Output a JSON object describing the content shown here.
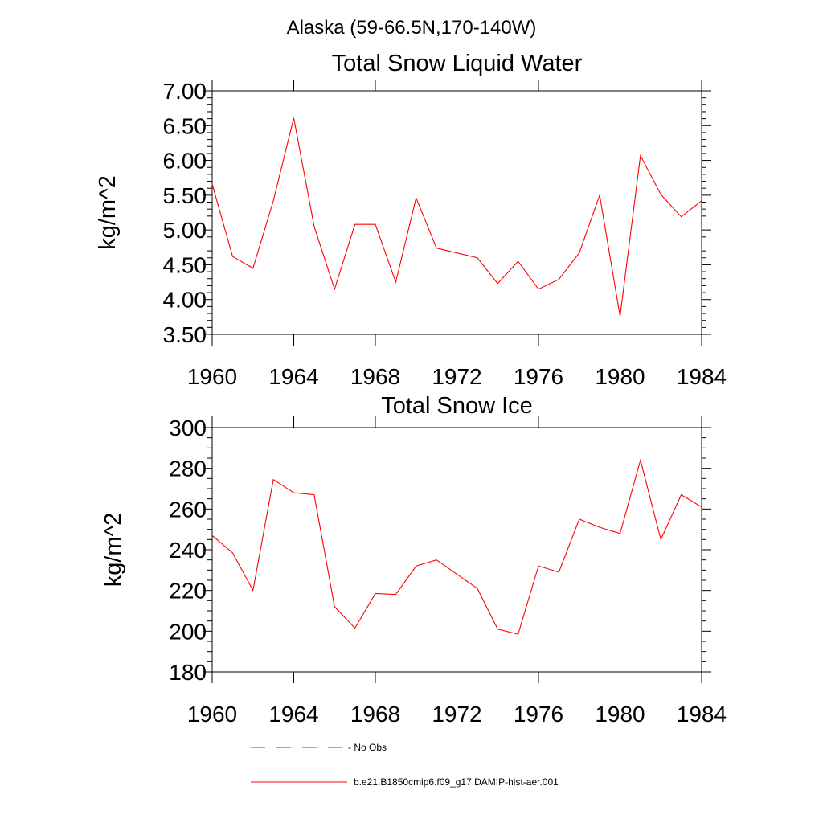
{
  "figure": {
    "title": "Alaska (59-66.5N,170-140W)"
  },
  "chart_data": [
    {
      "type": "line",
      "title": "Total Snow Liquid Water",
      "xlabel": "",
      "ylabel": "kg/m^2",
      "xlim": [
        1960,
        1984
      ],
      "ylim": [
        3.5,
        7.0
      ],
      "x_ticks": [
        "1960",
        "1964",
        "1968",
        "1972",
        "1976",
        "1980",
        "1984"
      ],
      "y_ticks": [
        "3.50",
        "4.00",
        "4.50",
        "5.00",
        "5.50",
        "6.00",
        "6.50",
        "7.00"
      ],
      "grid": false,
      "x": [
        1960,
        1961,
        1962,
        1963,
        1964,
        1965,
        1966,
        1967,
        1968,
        1969,
        1970,
        1971,
        1972,
        1973,
        1974,
        1975,
        1976,
        1977,
        1978,
        1979,
        1980,
        1981,
        1982,
        1983,
        1984
      ],
      "series": [
        {
          "name": "b.e21.B1850cmip6.f09_g17.DAMIP-hist-aer.001",
          "color": "#ff0000",
          "values": [
            5.66,
            4.62,
            4.45,
            5.42,
            6.61,
            5.05,
            4.15,
            5.08,
            5.08,
            4.25,
            5.46,
            4.74,
            4.67,
            4.6,
            4.23,
            4.55,
            4.15,
            4.29,
            4.67,
            5.5,
            3.76,
            6.07,
            5.51,
            5.19,
            5.42
          ]
        }
      ]
    },
    {
      "type": "line",
      "title": "Total Snow Ice",
      "xlabel": "",
      "ylabel": "kg/m^2",
      "xlim": [
        1960,
        1984
      ],
      "ylim": [
        180,
        300
      ],
      "x_ticks": [
        "1960",
        "1964",
        "1968",
        "1972",
        "1976",
        "1980",
        "1984"
      ],
      "y_ticks": [
        "180",
        "200",
        "220",
        "240",
        "260",
        "280",
        "300"
      ],
      "grid": false,
      "x": [
        1960,
        1961,
        1962,
        1963,
        1964,
        1965,
        1966,
        1967,
        1968,
        1969,
        1970,
        1971,
        1972,
        1973,
        1974,
        1975,
        1976,
        1977,
        1978,
        1979,
        1980,
        1981,
        1982,
        1983,
        1984
      ],
      "series": [
        {
          "name": "b.e21.B1850cmip6.f09_g17.DAMIP-hist-aer.001",
          "color": "#ff0000",
          "values": [
            247,
            238.5,
            220,
            274.5,
            268,
            267,
            212,
            201.5,
            218.5,
            218,
            232,
            235,
            228,
            221,
            201,
            198.5,
            232,
            229,
            255,
            251,
            248,
            284,
            245,
            267,
            261
          ]
        }
      ]
    }
  ],
  "legend": {
    "position": "bottom",
    "entries": [
      {
        "label": "- No Obs",
        "color": "#4a4a8a",
        "style": "dashed"
      },
      {
        "label": "b.e21.B1850cmip6.f09_g17.DAMIP-hist-aer.001",
        "color": "#ff0000",
        "style": "solid"
      }
    ]
  }
}
